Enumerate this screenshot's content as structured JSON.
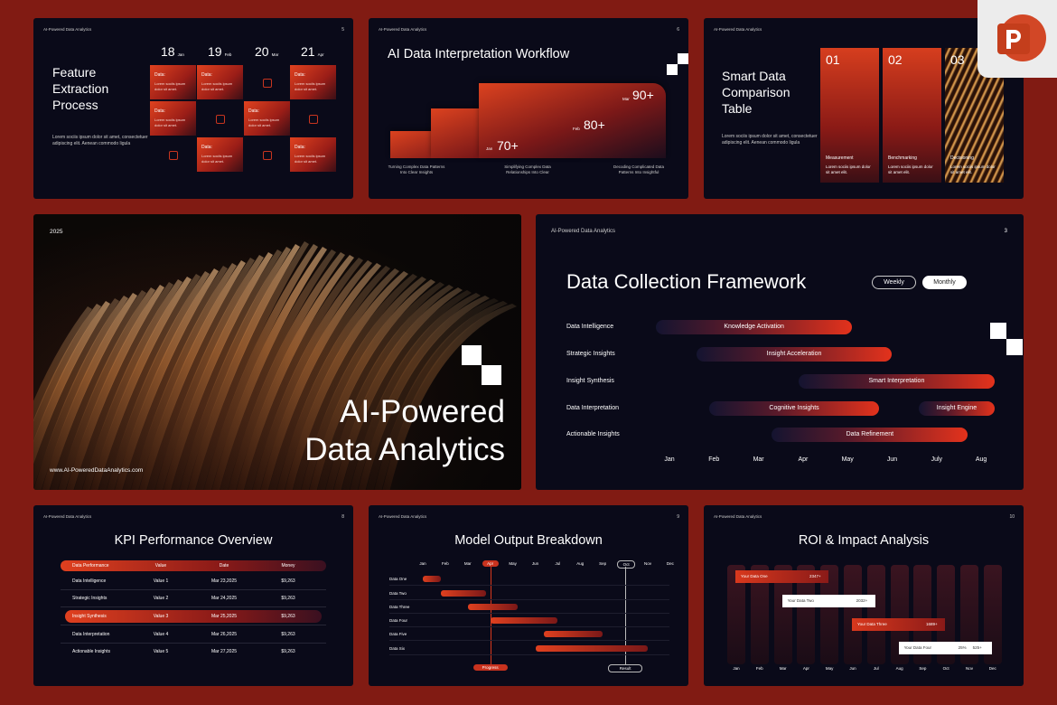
{
  "feature_extraction": {
    "header": "AI-Powered Data Analytics",
    "number": "5",
    "title": "Feature Extraction Process",
    "body": "Lorem sociis ipsum dolor sit amet, consectetuer adipiscing elit. Aenean commodo ligula",
    "dates": [
      {
        "day": "18",
        "month": "Jan"
      },
      {
        "day": "19",
        "month": "Feb"
      },
      {
        "day": "20",
        "month": "Mar"
      },
      {
        "day": "21",
        "month": "Apr"
      }
    ],
    "cards": [
      {
        "label": "Data:",
        "text": "Lorem sociis ipsum dolor sit amet."
      },
      {
        "label": "Data:",
        "text": "Lorem sociis ipsum dolor sit amet."
      },
      {
        "label": "Data:",
        "text": "Lorem sociis ipsum dolor sit amet."
      },
      {
        "label": "Data:",
        "text": "Lorem sociis ipsum dolor sit amet."
      },
      {
        "label": "Data:",
        "text": "Lorem sociis ipsum dolor sit amet."
      },
      {
        "label": "Data:",
        "text": "Lorem sociis ipsum dolor sit amet."
      },
      {
        "label": "Data:",
        "text": "Lorem sociis ipsum dolor sit amet."
      }
    ]
  },
  "workflow": {
    "header": "AI-Powered Data Analytics",
    "number": "6",
    "title": "AI Data Interpretation Workflow",
    "stats": [
      {
        "month": "Jan",
        "value": "70+"
      },
      {
        "month": "Feb",
        "value": "80+"
      },
      {
        "month": "Mar",
        "value": "90+"
      }
    ],
    "captions": [
      "Turning Complex Data Patterns Into Clear Insights",
      "Simplifying Complex Data Relationships Into Clear",
      "Decoding Complicated Data Patterns Into Insightful"
    ]
  },
  "comparison": {
    "header": "AI-Powered Data Analytics",
    "title": "Smart Data Comparison Table",
    "body": "Lorem sociis ipsum dolor sit amet, consectetuer adipiscing elit. Aenean commodo ligula",
    "columns": [
      {
        "number": "01",
        "label": "Measurement",
        "text": "Lorem sociis ipsum dolor sit amet elit."
      },
      {
        "number": "02",
        "label": "Benchmarking",
        "text": "Lorem sociis ipsum dolor sit amet elit."
      },
      {
        "number": "03",
        "label": "Decisioning",
        "text": "Lorem sociis ipsum dolor sit amet elit."
      }
    ]
  },
  "cover": {
    "year": "2025",
    "title": "AI-Powered Data Analytics",
    "url": "www.AI-PoweredDataAnalytics.com"
  },
  "collection": {
    "header": "AI-Powered Data Analytics",
    "number": "3",
    "title": "Data Collection Framework",
    "toggles": [
      "Weekly",
      "Monthly"
    ],
    "rows": [
      {
        "name": "Data Intelligence",
        "bars": [
          {
            "label": "Knowledge Activation",
            "start": -0.3,
            "end": 4.1
          }
        ]
      },
      {
        "name": "Strategic Insights",
        "bars": [
          {
            "label": "Insight Acceleration",
            "start": 0.6,
            "end": 5.0
          }
        ]
      },
      {
        "name": "Insight Synthesis",
        "bars": [
          {
            "label": "Smart Interpretation",
            "start": 2.9,
            "end": 7.3
          }
        ]
      },
      {
        "name": "Data Interpretation",
        "bars": [
          {
            "label": "Cognitive Insights",
            "start": 0.9,
            "end": 4.7
          },
          {
            "label": "Insight Engine",
            "start": 5.6,
            "end": 7.3
          }
        ]
      },
      {
        "name": "Actionable Insights",
        "bars": [
          {
            "label": "Data Refinement",
            "start": 2.3,
            "end": 6.7
          }
        ]
      }
    ],
    "months": [
      "Jan",
      "Feb",
      "Mar",
      "Apr",
      "May",
      "Jun",
      "July",
      "Aug"
    ]
  },
  "kpi": {
    "header": "AI-Powered Data Analytics",
    "number": "8",
    "title": "KPI Performance Overview",
    "columns": [
      "Data Performance",
      "Value",
      "Date",
      "Money"
    ],
    "rows": [
      [
        "Data Intelligence",
        "Value 1",
        "Mar 23,2025",
        "$9,263"
      ],
      [
        "Strategic Insights",
        "Value 2",
        "Mar 24,2025",
        "$9,263"
      ],
      [
        "Insight Synthesis",
        "Value 3",
        "Mar 25,2025",
        "$9,263"
      ],
      [
        "Data Interpretation",
        "Value 4",
        "Mar 26,2025",
        "$9,263"
      ],
      [
        "Actionable Insights",
        "Value 5",
        "Mar 27,2025",
        "$9,263"
      ]
    ],
    "highlight": 2
  },
  "model_output": {
    "header": "AI-Powered Data Analytics",
    "number": "9",
    "title": "Model Output Breakdown",
    "months": [
      "Jan",
      "Feb",
      "Mar",
      "Apr",
      "May",
      "Jun",
      "Jul",
      "Aug",
      "Sep",
      "Oct",
      "Nov",
      "Dec"
    ],
    "rows": [
      {
        "name": "Data One",
        "start": 0,
        "end": 0.8
      },
      {
        "name": "Data Two",
        "start": 0.8,
        "end": 2.8
      },
      {
        "name": "Data Three",
        "start": 2,
        "end": 4.2
      },
      {
        "name": "Data Four",
        "start": 3,
        "end": 6
      },
      {
        "name": "Data Five",
        "start": 5.4,
        "end": 8
      },
      {
        "name": "Data Six",
        "start": 5,
        "end": 10
      }
    ],
    "markers": [
      {
        "label": "Progress",
        "at": 3
      },
      {
        "label": "Result",
        "at": 9
      }
    ]
  },
  "roi": {
    "header": "AI-Powered Data Analytics",
    "number": "10",
    "title": "ROI & Impact Analysis",
    "months": [
      "Jan",
      "Feb",
      "Mar",
      "Apr",
      "May",
      "Jun",
      "Jul",
      "Aug",
      "Sep",
      "Oct",
      "Nov",
      "Dec"
    ],
    "items": [
      {
        "label": "Your Data One",
        "value": "2347+"
      },
      {
        "label": "Your Data Two",
        "value": "2032+"
      },
      {
        "label": "Your Data Three",
        "value": "1689+"
      },
      {
        "label": "Your Data Four",
        "percent": "25%",
        "value": "525+"
      }
    ]
  }
}
